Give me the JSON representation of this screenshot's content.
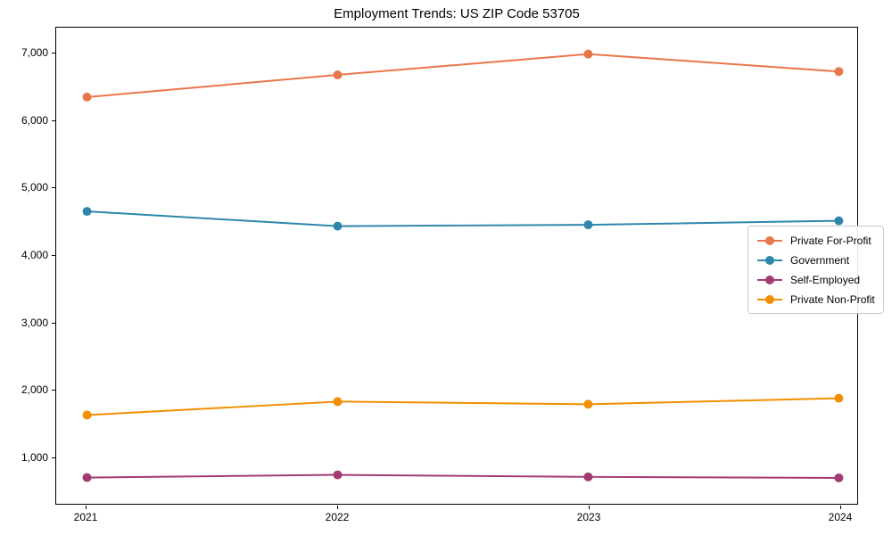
{
  "chart_data": {
    "type": "line",
    "title": "Employment Trends: US ZIP Code 53705",
    "xlabel": "",
    "ylabel": "",
    "x": [
      "2021",
      "2022",
      "2023",
      "2024"
    ],
    "series": [
      {
        "name": "Private For-Profit",
        "color": "#e8764b",
        "values": [
          6350,
          6680,
          6990,
          6730
        ]
      },
      {
        "name": "Government",
        "color": "#2e86ab",
        "values": [
          4650,
          4430,
          4450,
          4510
        ]
      },
      {
        "name": "Self-Employed",
        "color": "#a23b72",
        "values": [
          690,
          730,
          700,
          685
        ]
      },
      {
        "name": "Private Non-Profit",
        "color": "#f18f01",
        "values": [
          1620,
          1820,
          1780,
          1870
        ]
      }
    ],
    "y_ticks": [
      {
        "value": 1000,
        "label": "1,000"
      },
      {
        "value": 2000,
        "label": "2,000"
      },
      {
        "value": 3000,
        "label": "3,000"
      },
      {
        "value": 4000,
        "label": "4,000"
      },
      {
        "value": 5000,
        "label": "5,000"
      },
      {
        "value": 6000,
        "label": "6,000"
      },
      {
        "value": 7000,
        "label": "7,000"
      }
    ],
    "ylim": [
      300,
      7380
    ],
    "grid": false,
    "background": "#ffffff",
    "legend": {
      "position": "center-right",
      "border_color": "#c8c8c8"
    },
    "marker": "circle",
    "line_width": 2,
    "marker_radius": 5
  }
}
